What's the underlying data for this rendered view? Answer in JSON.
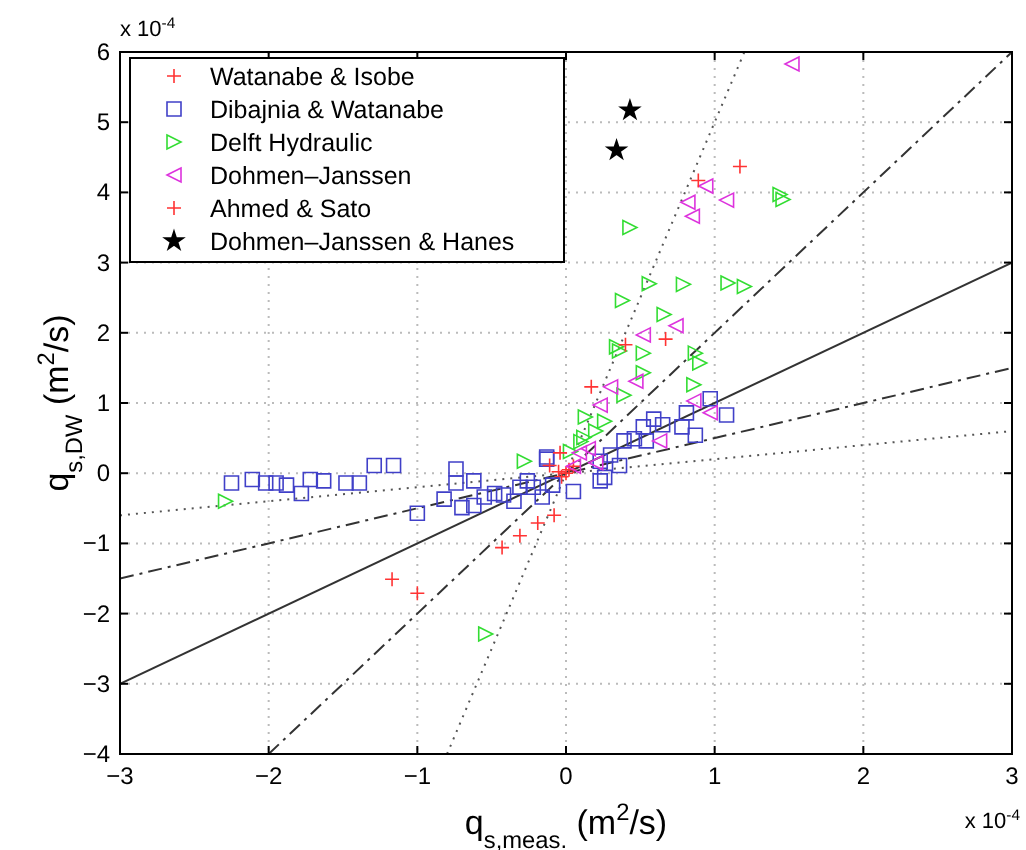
{
  "chart_data": {
    "type": "scatter",
    "xlabel": "q$_{s,meas.}$ (m$^{2}$/s)",
    "ylabel": "q$_{s,DW}$ (m$^{2}$/s)",
    "annotations": [
      "x 10$^{-4}$",
      "x 10$^{-4}$"
    ],
    "xlim": [
      -3,
      3
    ],
    "ylim": [
      -4,
      6
    ],
    "xticks": [
      -3,
      -2,
      -1,
      0,
      1,
      2,
      3
    ],
    "yticks": [
      -4,
      -3,
      -2,
      -1,
      0,
      1,
      2,
      3,
      4,
      5,
      6
    ],
    "grid": true,
    "legend": "top left",
    "series": [
      {
        "type": "line",
        "color": "#333333",
        "line_style": "solid",
        "marker": "none",
        "x": [
          -3,
          3
        ],
        "values": [
          -3,
          3
        ]
      },
      {
        "type": "line",
        "color": "#333333",
        "line_style": "dashed",
        "marker": "none",
        "x": [
          -2,
          3
        ],
        "values": [
          -4,
          6
        ]
      },
      {
        "type": "line",
        "color": "#333333",
        "line_style": "dashed",
        "marker": "none",
        "x": [
          -3,
          3
        ],
        "values": [
          -1.5,
          1.5
        ]
      },
      {
        "type": "line",
        "color": "#555555",
        "line_style": "dotted",
        "marker": "none",
        "x": [
          -0.8,
          1.2
        ],
        "values": [
          -4,
          6
        ]
      },
      {
        "type": "line",
        "color": "#555555",
        "line_style": "dotted",
        "marker": "none",
        "x": [
          -3,
          3
        ],
        "values": [
          -0.6,
          0.6
        ]
      },
      {
        "name": "Watanabe & Isobe",
        "color": "#ff3333",
        "marker": "cross",
        "x": [
          0,
          0.02,
          -0.03,
          0.05,
          -0.05
        ],
        "values": [
          0,
          0.05,
          -0.05,
          0.1,
          0.02
        ]
      },
      {
        "name": "Dibajnia & Watanabe",
        "color": "#4040c8",
        "marker": "square",
        "x": [
          -2.25,
          -2.11,
          -2.02,
          -1.95,
          -1.88,
          -1.78,
          -1.72,
          -1.63,
          -1.48,
          -1.39,
          -1.29,
          -1.16,
          -1.0,
          -0.82,
          -0.74,
          -0.74,
          -0.7,
          -0.62,
          -0.62,
          -0.55,
          -0.48,
          -0.42,
          -0.35,
          -0.31,
          -0.26,
          -0.22,
          -0.13,
          -0.16,
          -0.09,
          0.23,
          0.97,
          1.08,
          0.81,
          0.78,
          0.87,
          0.65,
          0.52,
          0.54,
          0.46,
          0.39,
          0.36,
          0.23,
          0.26,
          0.3,
          -0.13,
          0.05,
          0.59
        ],
        "values": [
          -0.14,
          -0.09,
          -0.14,
          -0.14,
          -0.17,
          -0.29,
          -0.09,
          -0.11,
          -0.14,
          -0.14,
          0.11,
          0.11,
          -0.57,
          -0.37,
          0.06,
          -0.14,
          -0.49,
          -0.11,
          -0.46,
          -0.34,
          -0.29,
          -0.31,
          -0.4,
          -0.2,
          -0.11,
          -0.2,
          0.2,
          -0.34,
          -0.17,
          -0.11,
          1.06,
          0.83,
          0.86,
          0.66,
          0.54,
          0.69,
          0.66,
          0.46,
          0.49,
          0.46,
          0.11,
          0.17,
          -0.06,
          0.26,
          0.23,
          -0.26,
          0.77
        ]
      },
      {
        "name": "Delft Hydraulic",
        "color": "#33dd33",
        "marker": "triangle-right",
        "x": [
          1.44,
          1.46,
          0.43,
          0.56,
          0.79,
          1.09,
          1.2,
          0.66,
          0.38,
          0.34,
          0.52,
          0.87,
          0.9,
          0.36,
          0.52,
          0.39,
          0.13,
          0.26,
          0.86,
          -0.28,
          0.12,
          0.03,
          -2.29,
          -0.54,
          0.2,
          0.1
        ],
        "values": [
          3.97,
          3.9,
          3.5,
          2.7,
          2.69,
          2.71,
          2.66,
          2.26,
          2.46,
          1.8,
          1.71,
          1.71,
          1.57,
          1.74,
          1.43,
          1.11,
          0.8,
          0.74,
          1.26,
          0.17,
          0.51,
          0.31,
          -0.4,
          -2.29,
          0.6,
          0.45
        ]
      },
      {
        "name": "Dohmen–Janssen",
        "color": "#dd33dd",
        "marker": "triangle-left",
        "x": [
          1.52,
          0.94,
          0.82,
          0.85,
          1.08,
          0.74,
          0.52,
          0.47,
          0.3,
          0.23,
          0.86,
          0.97,
          0.63,
          0.09,
          0.15,
          0.2,
          0.05
        ],
        "values": [
          5.83,
          4.09,
          3.86,
          3.66,
          3.89,
          2.1,
          1.97,
          1.31,
          1.23,
          0.97,
          1.03,
          0.86,
          0.46,
          0.29,
          0.35,
          0.15,
          0.1
        ]
      },
      {
        "name": "Ahmed & Sato",
        "color": "#ff3333",
        "marker": "cross",
        "x": [
          1.17,
          0.89,
          0.4,
          0.67,
          -1.17,
          -1.0,
          -0.43,
          -0.31,
          -0.19,
          -0.08,
          -0.04,
          -0.11,
          0.17
        ],
        "values": [
          4.37,
          4.17,
          1.83,
          1.91,
          -1.51,
          -1.71,
          -1.06,
          -0.89,
          -0.71,
          -0.6,
          0.29,
          0.11,
          1.23
        ]
      },
      {
        "name": "Dohmen–Janssen & Hanes",
        "color": "#000000",
        "marker": "star",
        "x": [
          0.43,
          0.34
        ],
        "values": [
          5.17,
          4.6
        ]
      }
    ]
  }
}
